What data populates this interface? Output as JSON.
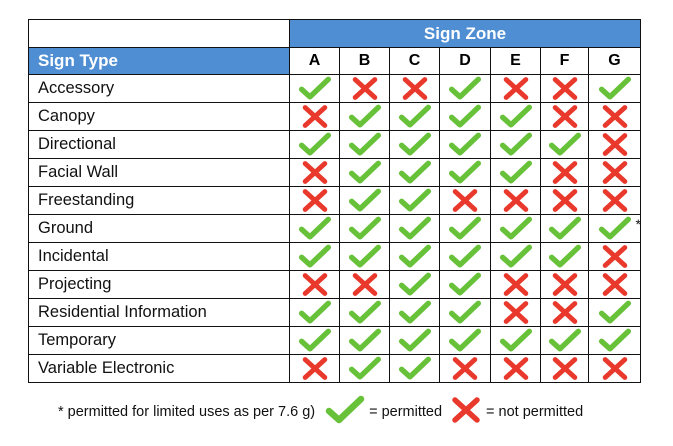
{
  "header": {
    "zone_title": "Sign Zone",
    "type_label": "Sign Type",
    "zones": [
      "A",
      "B",
      "C",
      "D",
      "E",
      "F",
      "G"
    ]
  },
  "rows": [
    {
      "type": "Accessory",
      "values": [
        "yes",
        "no",
        "no",
        "yes",
        "no",
        "no",
        "yes"
      ]
    },
    {
      "type": "Canopy",
      "values": [
        "no",
        "yes",
        "yes",
        "yes",
        "yes",
        "no",
        "no"
      ]
    },
    {
      "type": "Directional",
      "values": [
        "yes",
        "yes",
        "yes",
        "yes",
        "yes",
        "yes",
        "no"
      ]
    },
    {
      "type": "Facial Wall",
      "values": [
        "no",
        "yes",
        "yes",
        "yes",
        "yes",
        "no",
        "no"
      ]
    },
    {
      "type": "Freestanding",
      "values": [
        "no",
        "yes",
        "yes",
        "no",
        "no",
        "no",
        "no"
      ]
    },
    {
      "type": "Ground",
      "values": [
        "yes",
        "yes",
        "yes",
        "yes",
        "yes",
        "yes",
        "limited"
      ]
    },
    {
      "type": "Incidental",
      "values": [
        "yes",
        "yes",
        "yes",
        "yes",
        "yes",
        "yes",
        "no"
      ]
    },
    {
      "type": "Projecting",
      "values": [
        "no",
        "no",
        "yes",
        "yes",
        "no",
        "no",
        "no"
      ]
    },
    {
      "type": "Residential Information",
      "values": [
        "yes",
        "yes",
        "yes",
        "yes",
        "no",
        "no",
        "yes"
      ]
    },
    {
      "type": "Temporary",
      "values": [
        "yes",
        "yes",
        "yes",
        "yes",
        "yes",
        "yes",
        "yes"
      ]
    },
    {
      "type": "Variable Electronic",
      "values": [
        "no",
        "yes",
        "yes",
        "no",
        "no",
        "no",
        "no"
      ]
    }
  ],
  "asterisk": "*",
  "legend": {
    "note": "* permitted for limited uses as per 7.6 g)",
    "permitted": "= permitted",
    "not_permitted": "= not permitted"
  },
  "colors": {
    "header_blue": "#4f8ed3",
    "check_green": "#67c23a",
    "cross_red": "#e8392c"
  },
  "icons": {
    "yes": "check-icon",
    "no": "cross-icon",
    "limited": "check-icon"
  }
}
